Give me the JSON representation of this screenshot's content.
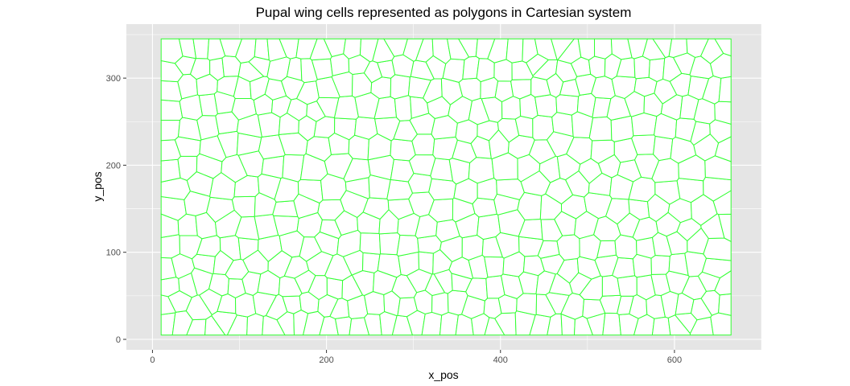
{
  "chart_data": {
    "type": "scatter",
    "mark": "voronoi-polygons",
    "title": "Pupal wing cells represented as polygons in Cartesian system",
    "xlabel": "x_pos",
    "ylabel": "y_pos",
    "xlim": [
      -30,
      700
    ],
    "ylim": [
      -12,
      362
    ],
    "x_ticks": [
      0,
      200,
      400,
      600
    ],
    "y_ticks": [
      0,
      100,
      200,
      300
    ],
    "grid": true,
    "panel_background": "#e5e5e5",
    "grid_color": "#ffffff",
    "cell_fill": "#ffffff",
    "cell_stroke": "#33ff33",
    "region": {
      "x_min": 10,
      "x_max": 665,
      "y_min": 5,
      "y_max": 345
    }
  }
}
